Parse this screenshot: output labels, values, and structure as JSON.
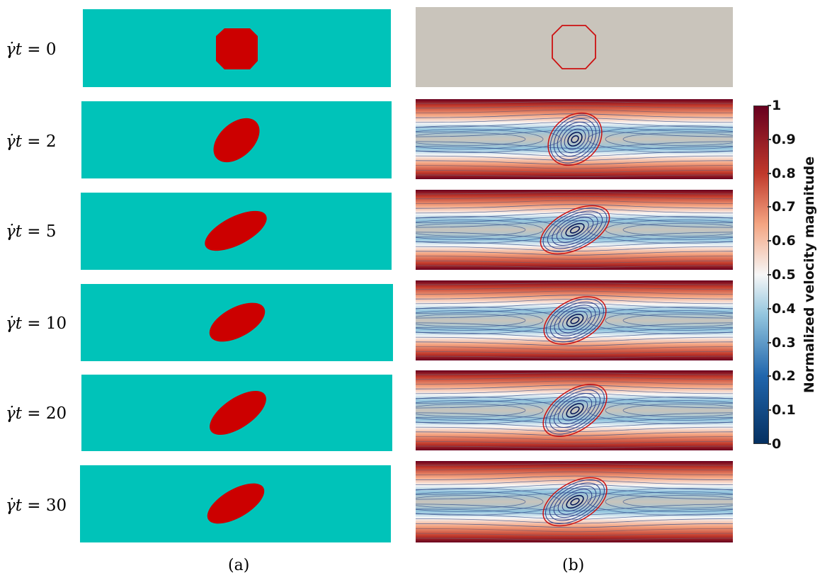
{
  "rows": [
    {
      "label_prefix": "γ̇",
      "label_t": "t",
      "label_rest": " = 0",
      "shape": "circle"
    },
    {
      "label_prefix": "γ̇",
      "label_t": "t",
      "label_rest": " = 2",
      "shape": "ellipse"
    },
    {
      "label_prefix": "γ̇",
      "label_t": "t",
      "label_rest": " = 5",
      "shape": "ellipse"
    },
    {
      "label_prefix": "γ̇",
      "label_t": "t",
      "label_rest": " = 10",
      "shape": "ellipse"
    },
    {
      "label_prefix": "γ̇",
      "label_t": "t",
      "label_rest": " = 20",
      "shape": "ellipse"
    },
    {
      "label_prefix": "γ̇",
      "label_t": "t",
      "label_rest": " = 30",
      "shape": "ellipse"
    }
  ],
  "captions": {
    "a": "(a)",
    "b": "(b)"
  },
  "colorbar": {
    "title": "Normalized velocity magnitude",
    "ticks": [
      "1",
      "0.9",
      "0.8",
      "0.7",
      "0.6",
      "0.5",
      "0.4",
      "0.3",
      "0.2",
      "0.1",
      "0"
    ],
    "colors": {
      "top": "#67001f",
      "high": "#c0392b",
      "mid_high": "#f4a582",
      "mid": "#f7f7f7",
      "mid_low": "#92c5de",
      "low": "#2166ac",
      "bottom": "#053061"
    }
  },
  "colors": {
    "matrix": "#00c3b9",
    "droplet": "#cc0000",
    "background_b": "#c9c4bb",
    "interface": "#cc1111"
  }
}
